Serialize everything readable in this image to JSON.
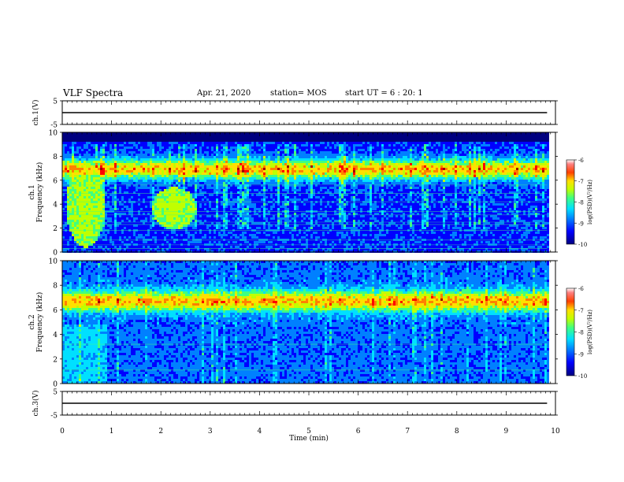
{
  "header": {
    "title": "VLF Spectra",
    "date": "Apr. 21, 2020",
    "station": "station= MOS",
    "start_ut": "start  UT =   6 : 20: 1"
  },
  "colors": {
    "spectrum": [
      "#000080",
      "#0000ff",
      "#0080ff",
      "#00e0ff",
      "#40ff80",
      "#c0ff00",
      "#ffe000",
      "#ff8000",
      "#ff0000",
      "#a00000"
    ],
    "background_band": "#000000",
    "line": "#000000"
  },
  "chart_data": [
    {
      "type": "line",
      "panel": "ch1-voltage",
      "ylabel": "ch.1(V)",
      "ylim": [
        -5,
        5
      ],
      "yticks": [
        "5",
        "-5"
      ],
      "series": [
        {
          "values_description": "flat",
          "x": [
            0,
            9.83
          ],
          "y": [
            0,
            0
          ]
        }
      ]
    },
    {
      "type": "heatmap",
      "panel": "ch1-spectrogram",
      "ylabel": "ch.1\nFrequency (kHz)",
      "ylim": [
        0,
        10
      ],
      "yticks": [
        "0",
        "2",
        "4",
        "6",
        "8",
        "10"
      ],
      "xlim": [
        0,
        9.83
      ],
      "features": {
        "strong_band_khz": [
          6.2,
          7.8
        ],
        "saturation_cutoff_khz": 9.4,
        "bursts": [
          {
            "t_start": 0.05,
            "t_end": 0.85,
            "f_low": 0.5,
            "f_high": 7.5
          },
          {
            "t_start": 1.8,
            "t_end": 2.7,
            "f_low": 2.0,
            "f_high": 5.5
          }
        ],
        "tone_lines_khz": [
          0.3,
          0.6,
          1.0,
          1.8,
          2.3,
          2.5,
          3.1,
          3.4,
          4.2,
          4.9,
          5.6
        ]
      },
      "colorbar": {
        "label": "log(PSD)(V²/Hz)",
        "ticks": [
          "-6",
          "-7",
          "-8",
          "-9",
          "-10"
        ],
        "range": [
          -10,
          -6
        ]
      }
    },
    {
      "type": "heatmap",
      "panel": "ch2-spectrogram",
      "ylabel": "ch.2\nFrequency (kHz)",
      "ylim": [
        0,
        10
      ],
      "yticks": [
        "0",
        "2",
        "4",
        "6",
        "8",
        "10"
      ],
      "xlim": [
        0,
        9.83
      ],
      "features": {
        "strong_band_khz": [
          6.0,
          7.6
        ],
        "saturation_cutoff_khz": 10,
        "tone_lines_khz": [
          1.1,
          3.2
        ]
      },
      "colorbar": {
        "label": "log(PSD)(V²/Hz)",
        "ticks": [
          "-6",
          "-7",
          "-8",
          "-9",
          "-10"
        ],
        "range": [
          -10,
          -6
        ]
      }
    },
    {
      "type": "line",
      "panel": "ch3-voltage",
      "ylabel": "ch.3(V)",
      "ylim": [
        -5,
        5
      ],
      "yticks": [
        "5",
        "-5"
      ],
      "xlabel": "Time (min)",
      "xticks": [
        "0",
        "1",
        "2",
        "3",
        "4",
        "5",
        "6",
        "7",
        "8",
        "9",
        "10"
      ],
      "xlim": [
        0,
        10
      ],
      "series": [
        {
          "x": [
            0,
            9.83
          ],
          "y": [
            0,
            0
          ]
        }
      ]
    }
  ]
}
